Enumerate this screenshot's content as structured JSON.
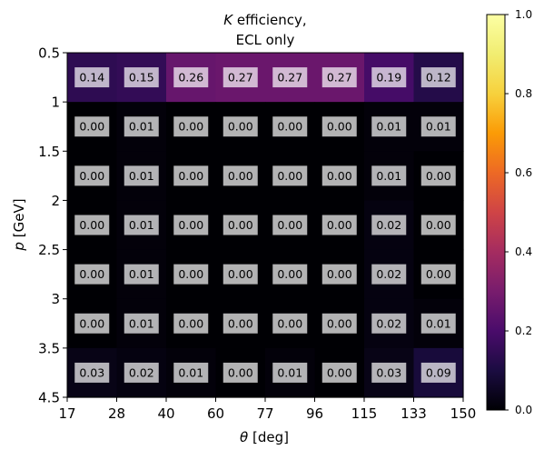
{
  "chart_data": {
    "type": "heatmap",
    "title_line1_italic": "K",
    "title_line1_rest": " efficiency,",
    "title_line2": "ECL only",
    "xlabel_italic": "θ",
    "xlabel_rest": " [deg]",
    "ylabel_italic": "p",
    "ylabel_rest": " [GeV]",
    "x_tick_labels": [
      "17",
      "28",
      "40",
      "60",
      "77",
      "96",
      "115",
      "133",
      "150"
    ],
    "y_tick_labels": [
      "0.5",
      "1",
      "1.5",
      "2",
      "2.5",
      "3",
      "3.5",
      "4.5"
    ],
    "colorbar_ticks": [
      "0.0",
      "0.2",
      "0.4",
      "0.6",
      "0.8",
      "1.0"
    ],
    "colorbar_range": [
      0.0,
      1.0
    ],
    "colormap": "inferno",
    "values": [
      [
        0.14,
        0.15,
        0.26,
        0.27,
        0.27,
        0.27,
        0.19,
        0.12
      ],
      [
        0.0,
        0.01,
        0.0,
        0.0,
        0.0,
        0.0,
        0.01,
        0.01
      ],
      [
        0.0,
        0.01,
        0.0,
        0.0,
        0.0,
        0.0,
        0.01,
        0.0
      ],
      [
        0.0,
        0.01,
        0.0,
        0.0,
        0.0,
        0.0,
        0.02,
        0.0
      ],
      [
        0.0,
        0.01,
        0.0,
        0.0,
        0.0,
        0.0,
        0.02,
        0.0
      ],
      [
        0.0,
        0.01,
        0.0,
        0.0,
        0.0,
        0.0,
        0.02,
        0.01
      ],
      [
        0.03,
        0.02,
        0.01,
        0.0,
        0.01,
        0.0,
        0.03,
        0.09
      ]
    ]
  }
}
